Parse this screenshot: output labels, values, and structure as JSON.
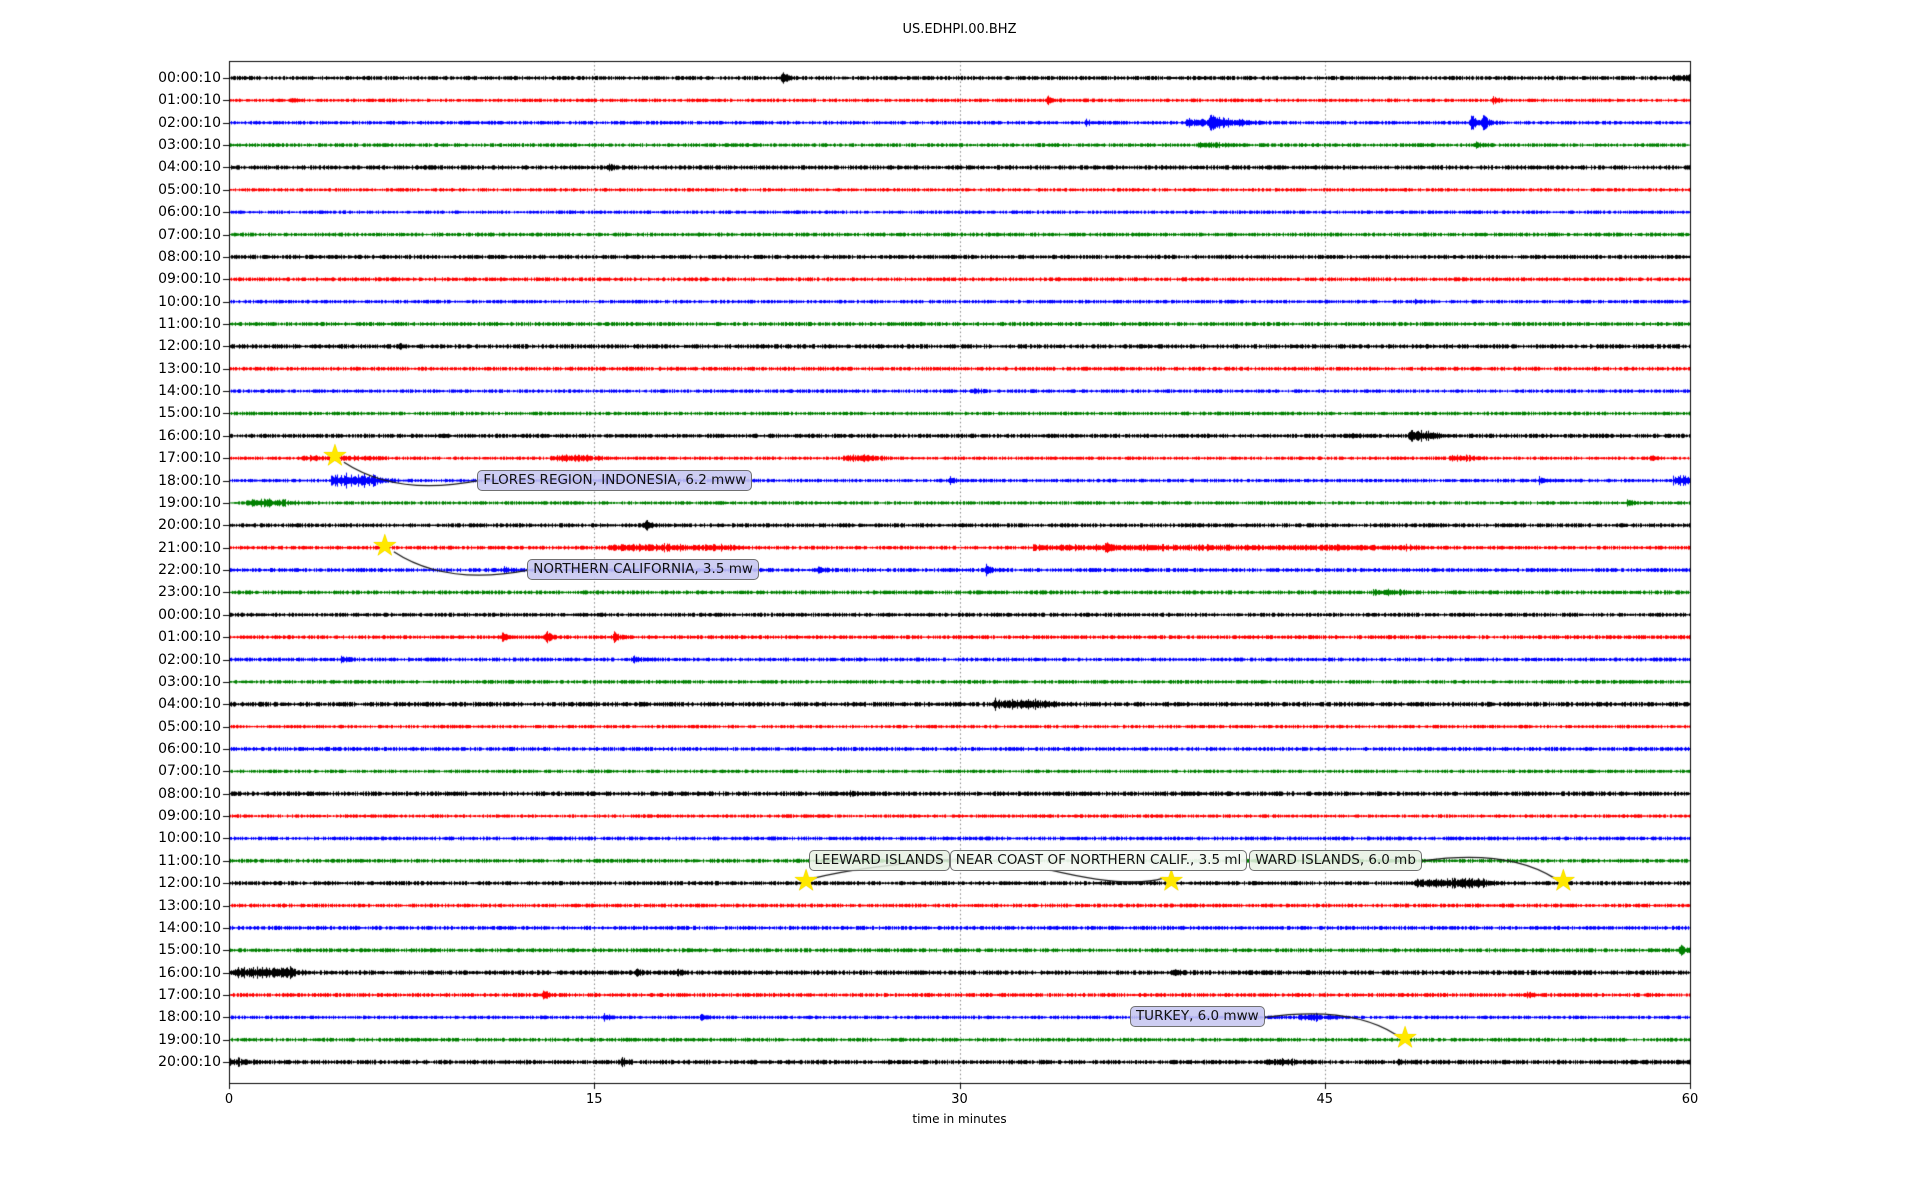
{
  "title": "US.EDHPI.00.BHZ",
  "xlabel": "time in minutes",
  "chart_data": {
    "type": "line",
    "subtype": "seismic-helicorder-dayplot",
    "station": "US.EDHPI.00.BHZ",
    "x_range_minutes": [
      0,
      60
    ],
    "x_ticks": [
      0,
      15,
      30,
      45,
      60
    ],
    "grid_minutes": [
      15,
      30,
      45
    ],
    "grid_style": "dotted",
    "trace_color_cycle": [
      "#000000",
      "#ff0000",
      "#0000ff",
      "#008000"
    ],
    "event_marker_color": "#ffe800",
    "rows": [
      {
        "label": "00:00:10",
        "color": "#000000"
      },
      {
        "label": "01:00:10",
        "color": "#ff0000"
      },
      {
        "label": "02:00:10",
        "color": "#0000ff"
      },
      {
        "label": "03:00:10",
        "color": "#008000"
      },
      {
        "label": "04:00:10",
        "color": "#000000"
      },
      {
        "label": "05:00:10",
        "color": "#ff0000"
      },
      {
        "label": "06:00:10",
        "color": "#0000ff"
      },
      {
        "label": "07:00:10",
        "color": "#008000"
      },
      {
        "label": "08:00:10",
        "color": "#000000"
      },
      {
        "label": "09:00:10",
        "color": "#ff0000"
      },
      {
        "label": "10:00:10",
        "color": "#0000ff"
      },
      {
        "label": "11:00:10",
        "color": "#008000"
      },
      {
        "label": "12:00:10",
        "color": "#000000"
      },
      {
        "label": "13:00:10",
        "color": "#ff0000"
      },
      {
        "label": "14:00:10",
        "color": "#0000ff"
      },
      {
        "label": "15:00:10",
        "color": "#008000"
      },
      {
        "label": "16:00:10",
        "color": "#000000"
      },
      {
        "label": "17:00:10",
        "color": "#ff0000"
      },
      {
        "label": "18:00:10",
        "color": "#0000ff"
      },
      {
        "label": "19:00:10",
        "color": "#008000"
      },
      {
        "label": "20:00:10",
        "color": "#000000"
      },
      {
        "label": "21:00:10",
        "color": "#ff0000"
      },
      {
        "label": "22:00:10",
        "color": "#0000ff"
      },
      {
        "label": "23:00:10",
        "color": "#008000"
      },
      {
        "label": "00:00:10",
        "color": "#000000"
      },
      {
        "label": "01:00:10",
        "color": "#ff0000"
      },
      {
        "label": "02:00:10",
        "color": "#0000ff"
      },
      {
        "label": "03:00:10",
        "color": "#008000"
      },
      {
        "label": "04:00:10",
        "color": "#000000"
      },
      {
        "label": "05:00:10",
        "color": "#ff0000"
      },
      {
        "label": "06:00:10",
        "color": "#0000ff"
      },
      {
        "label": "07:00:10",
        "color": "#008000"
      },
      {
        "label": "08:00:10",
        "color": "#000000"
      },
      {
        "label": "09:00:10",
        "color": "#ff0000"
      },
      {
        "label": "10:00:10",
        "color": "#0000ff"
      },
      {
        "label": "11:00:10",
        "color": "#008000"
      },
      {
        "label": "12:00:10",
        "color": "#000000"
      },
      {
        "label": "13:00:10",
        "color": "#ff0000"
      },
      {
        "label": "14:00:10",
        "color": "#0000ff"
      },
      {
        "label": "15:00:10",
        "color": "#008000"
      },
      {
        "label": "16:00:10",
        "color": "#000000"
      },
      {
        "label": "17:00:10",
        "color": "#ff0000"
      },
      {
        "label": "18:00:10",
        "color": "#0000ff"
      },
      {
        "label": "19:00:10",
        "color": "#008000"
      },
      {
        "label": "20:00:10",
        "color": "#000000"
      }
    ],
    "events": [
      {
        "row": 0,
        "t": 22.7,
        "amp": 7
      },
      {
        "row": 0,
        "t": 59.3,
        "t2": 60,
        "amp": 3
      },
      {
        "row": 1,
        "t": 2.6,
        "amp": 3
      },
      {
        "row": 1,
        "t": 33.6,
        "amp": 4
      },
      {
        "row": 1,
        "t": 51.9,
        "amp": 3.5
      },
      {
        "row": 2,
        "t": 35.2,
        "amp": 2.5
      },
      {
        "row": 2,
        "t": 39.3,
        "t2": 41.7,
        "amp": 4
      },
      {
        "row": 2,
        "t": 40.3,
        "amp": 9
      },
      {
        "row": 2,
        "t": 51.0,
        "amp": 10
      },
      {
        "row": 2,
        "t": 51.5,
        "amp": 8
      },
      {
        "row": 3,
        "t": 39.8,
        "t2": 40.6,
        "amp": 2.5
      },
      {
        "row": 3,
        "t": 51.2,
        "amp": 3
      },
      {
        "row": 4,
        "t": 15.6,
        "amp": 2
      },
      {
        "row": 10,
        "t": 48.7,
        "amp": 2
      },
      {
        "row": 12,
        "t": 7.0,
        "amp": 2
      },
      {
        "row": 14,
        "t": 30.6,
        "amp": 2.5
      },
      {
        "row": 16,
        "t": 46.0,
        "amp": 2.5
      },
      {
        "row": 16,
        "t": 48.4,
        "t2": 49.2,
        "amp": 6
      },
      {
        "row": 17,
        "t": 3.0,
        "t2": 6.0,
        "amp": 1.8
      },
      {
        "row": 17,
        "t": 13.2,
        "t2": 14.9,
        "amp": 3
      },
      {
        "row": 17,
        "t": 25.2,
        "t2": 26.4,
        "amp": 3.5
      },
      {
        "row": 17,
        "t": 50.1,
        "t2": 50.8,
        "amp": 3
      },
      {
        "row": 17,
        "t": 58.4,
        "amp": 2.5
      },
      {
        "row": 18,
        "t": 4.2,
        "t2": 6.0,
        "amp": 7
      },
      {
        "row": 18,
        "t": 15.5,
        "amp": 4
      },
      {
        "row": 18,
        "t": 29.6,
        "amp": 3.5
      },
      {
        "row": 18,
        "t": 53.8,
        "amp": 3
      },
      {
        "row": 18,
        "t": 59.3,
        "t2": 60,
        "amp": 5
      },
      {
        "row": 19,
        "t": 0.7,
        "t2": 2.3,
        "amp": 3.5
      },
      {
        "row": 19,
        "t": 57.4,
        "amp": 3
      },
      {
        "row": 20,
        "t": 17.1,
        "amp": 5
      },
      {
        "row": 21,
        "t": 15.6,
        "t2": 20.7,
        "amp": 3
      },
      {
        "row": 21,
        "t": 33.0,
        "t2": 48.7,
        "amp": 2.2
      },
      {
        "row": 21,
        "t": 36.0,
        "amp": 4
      },
      {
        "row": 22,
        "t": 11.3,
        "amp": 2.5
      },
      {
        "row": 22,
        "t": 24.2,
        "amp": 4
      },
      {
        "row": 22,
        "t": 31.1,
        "amp": 5
      },
      {
        "row": 23,
        "t": 47.0,
        "t2": 47.9,
        "amp": 3
      },
      {
        "row": 25,
        "t": 11.2,
        "amp": 5
      },
      {
        "row": 25,
        "t": 13.0,
        "amp": 6
      },
      {
        "row": 25,
        "t": 15.8,
        "amp": 4
      },
      {
        "row": 26,
        "t": 4.6,
        "amp": 4
      },
      {
        "row": 26,
        "t": 16.6,
        "amp": 3
      },
      {
        "row": 28,
        "t": 31.4,
        "t2": 33.4,
        "amp": 5
      },
      {
        "row": 32,
        "t": 25.5,
        "amp": 2
      },
      {
        "row": 36,
        "t": 48.7,
        "t2": 51.4,
        "amp": 4.5
      },
      {
        "row": 39,
        "t": 59.6,
        "amp": 5
      },
      {
        "row": 40,
        "t": 0.2,
        "t2": 2.5,
        "amp": 5
      },
      {
        "row": 40,
        "t": 16.7,
        "amp": 3
      },
      {
        "row": 40,
        "t": 18.4,
        "amp": 3
      },
      {
        "row": 40,
        "t": 38.8,
        "amp": 2.5
      },
      {
        "row": 41,
        "t": 12.9,
        "amp": 4
      },
      {
        "row": 41,
        "t": 53.3,
        "amp": 3
      },
      {
        "row": 42,
        "t": 15.4,
        "amp": 3
      },
      {
        "row": 42,
        "t": 19.4,
        "amp": 3
      },
      {
        "row": 42,
        "t": 43.9,
        "t2": 44.9,
        "amp": 4
      },
      {
        "row": 44,
        "t": 0.0,
        "t2": 0.4,
        "amp": 3
      },
      {
        "row": 44,
        "t": 16.1,
        "amp": 4
      },
      {
        "row": 44,
        "t": 42.6,
        "t2": 43.6,
        "amp": 2.5
      },
      {
        "row": 44,
        "t": 48.0,
        "amp": 2
      }
    ],
    "annotations": [
      {
        "id": "flores",
        "text": "FLORES REGION, INDONESIA, 6.2 mww",
        "star": {
          "row": 17,
          "minute": 4.35
        },
        "box": {
          "row": 18,
          "minute": 10.2
        },
        "bg": "rgba(198,198,240,0.88)",
        "z": 2
      },
      {
        "id": "norcal",
        "text": "NORTHERN CALIFORNIA, 3.5 mw",
        "star": {
          "row": 21,
          "minute": 6.4
        },
        "box": {
          "row": 22,
          "minute": 12.25
        },
        "bg": "rgba(198,198,240,0.88)",
        "z": 2
      },
      {
        "id": "leeward-1",
        "text": "LEEWARD ISLANDS",
        "star": {
          "row": 36,
          "minute": 23.7
        },
        "box": {
          "row": 35,
          "minute": 23.8
        },
        "bg": "rgba(231,241,228,0.85)",
        "z": 2
      },
      {
        "id": "near-coast",
        "text": "NEAR COAST OF NORTHERN CALIF., 3.5 ml",
        "star": {
          "row": 36,
          "minute": 38.7
        },
        "box": {
          "row": 35,
          "minute": 29.6
        },
        "bg": "rgba(244,248,243,0.92)",
        "z": 3
      },
      {
        "id": "leeward-2",
        "text": "WARD ISLANDS, 6.0 mb",
        "star": {
          "row": 36,
          "minute": 54.8
        },
        "box": {
          "row": 35,
          "minute": 41.9
        },
        "bg": "rgba(231,241,228,0.85)",
        "z": 2
      },
      {
        "id": "turkey",
        "text": "TURKEY, 6.0 mww",
        "star": {
          "row": 43,
          "minute": 48.3
        },
        "box": {
          "row": 42,
          "minute": 37.0
        },
        "bg": "rgba(198,198,240,0.88)",
        "z": 2
      }
    ]
  }
}
